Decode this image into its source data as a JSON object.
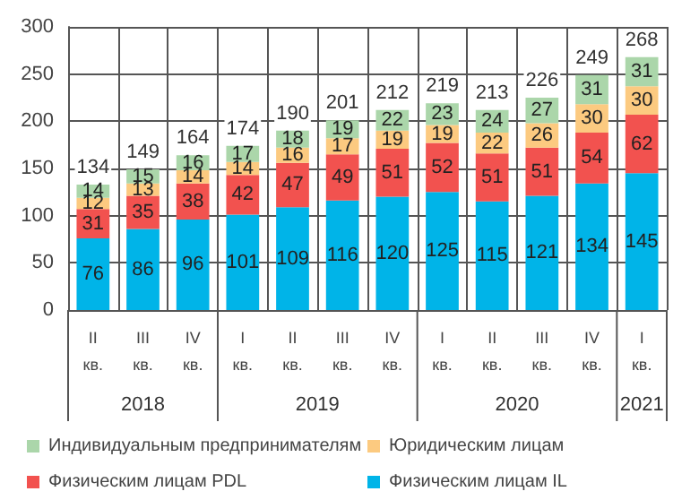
{
  "chart_data": {
    "type": "bar",
    "stacked": true,
    "data_labels": true,
    "grid": true,
    "legend": "bottom",
    "categories": [
      "II кв.",
      "III кв.",
      "IV кв.",
      "I кв.",
      "II кв.",
      "III кв.",
      "IV кв.",
      "I кв.",
      "II кв.",
      "III кв.",
      "IV кв.",
      "I кв."
    ],
    "ylim": [
      0,
      300
    ],
    "yticks": [
      0,
      50,
      100,
      150,
      200,
      250,
      300
    ],
    "series": [
      {
        "name": "Физическим лицам IL",
        "color": "#00b4e8",
        "values": [
          76,
          86,
          96,
          101,
          109,
          116,
          120,
          125,
          115,
          121,
          134,
          145
        ]
      },
      {
        "name": "Физическим лицам PDL",
        "color": "#f2524f",
        "values": [
          31,
          35,
          38,
          42,
          47,
          49,
          51,
          52,
          51,
          51,
          54,
          62
        ]
      },
      {
        "name": "Юридическим лицам",
        "color": "#fcca80",
        "values": [
          12,
          13,
          14,
          14,
          16,
          17,
          19,
          19,
          22,
          26,
          30,
          30
        ]
      },
      {
        "name": "Индивидуальным предпринимателям",
        "color": "#abd6aa",
        "values": [
          14,
          15,
          16,
          17,
          18,
          19,
          22,
          23,
          24,
          27,
          31,
          31
        ]
      }
    ],
    "totals": [
      "134",
      "149",
      "164",
      "174",
      "190",
      "201",
      "212",
      "219",
      "213",
      "226",
      "249",
      "268"
    ],
    "annotations": [
      "2018",
      "2019",
      "2020",
      "2021"
    ]
  }
}
